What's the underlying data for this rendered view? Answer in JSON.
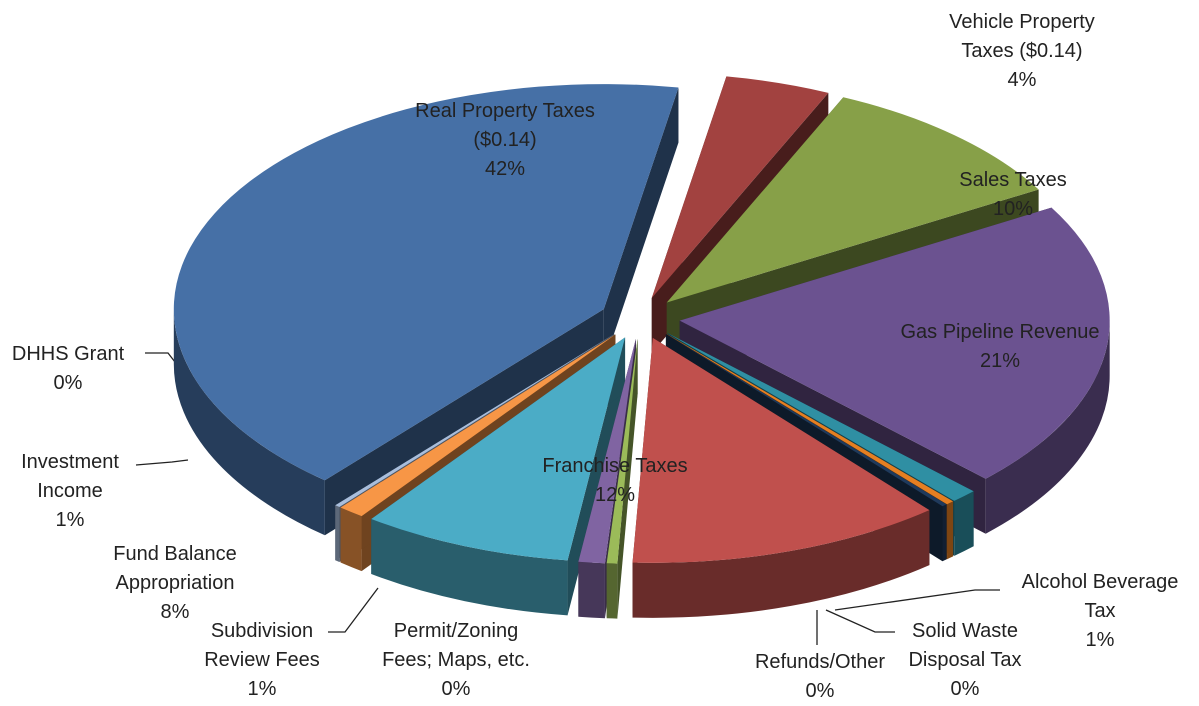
{
  "chart_data": {
    "type": "pie3d",
    "categories": [
      "Vehicle Property Taxes ($0.14)",
      "Sales Taxes",
      "Gas Pipeline Revenue",
      "Alcohol Beverage Tax",
      "Solid Waste Disposal Tax",
      "Refunds/Other",
      "Franchise Taxes",
      "Permit/Zoning Fees; Maps, etc.",
      "Subdivision Review Fees",
      "Fund Balance Appropriation",
      "Investment Income",
      "DHHS Grant",
      "Real Property Taxes ($0.14)"
    ],
    "values": [
      4,
      10,
      21,
      1,
      0.3,
      0.2,
      12,
      0.4,
      1,
      8,
      1,
      0.2,
      42
    ],
    "value_labels": [
      "4%",
      "10%",
      "21%",
      "1%",
      "0%",
      "0%",
      "12%",
      "0%",
      "1%",
      "8%",
      "1%",
      "0%",
      "42%"
    ],
    "colors": [
      "#a24240",
      "#87a048",
      "#6b5290",
      "#2f8fa3",
      "#e57f22",
      "#1f3a5c",
      "#c0504d",
      "#9bbb59",
      "#8064a2",
      "#4bacc6",
      "#f79646",
      "#a9bedc",
      "#4670a6"
    ]
  }
}
